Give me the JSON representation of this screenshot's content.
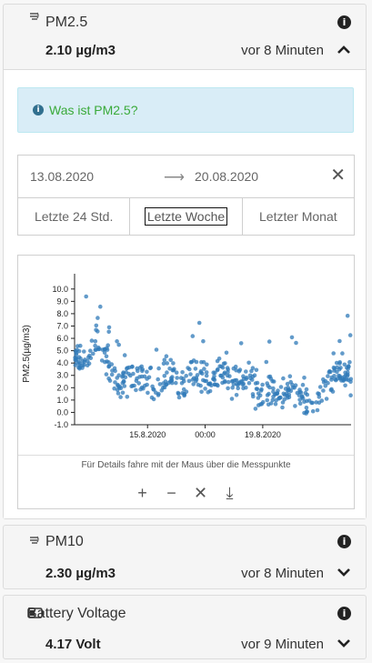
{
  "cards": [
    {
      "title": "PM2.5",
      "value": "2.10 µg/m3",
      "time": "vor 8 Minuten",
      "expanded": true,
      "info_text": "Was ist PM2.5?",
      "date_from": "13.08.2020",
      "date_to": "20.08.2020",
      "ranges": [
        "Letzte 24 Std.",
        "Letzte Woche",
        "Letzter Monat"
      ],
      "selected_range": "Letzte Woche",
      "chart_hint": "Für Details fahre mit der Maus über die Messpunkte"
    },
    {
      "title": "PM10",
      "value": "2.30 µg/m3",
      "time": "vor 8 Minuten",
      "expanded": false
    },
    {
      "title": "Battery Voltage",
      "value": "4.17 Volt",
      "time": "vor 9 Minuten",
      "expanded": false
    }
  ],
  "chart_data": {
    "type": "scatter",
    "ylabel": "PM2.5(µg/m3)",
    "ylim": [
      -1,
      10.5
    ],
    "yticks": [
      "10.0",
      "9.0",
      "8.0",
      "7.0",
      "6.0",
      "5.0",
      "4.0",
      "3.0",
      "2.0",
      "1.0",
      "0.0",
      "-1.0"
    ],
    "xticks": [
      "15.8.2020",
      "00:00",
      "19.8.2020"
    ],
    "color": "#2f7ab8",
    "x_days": [
      0.0,
      0.3,
      0.6,
      0.9,
      1.2,
      1.5,
      1.8,
      2.1,
      2.4,
      2.7,
      3.0,
      3.3,
      3.6,
      3.9,
      4.2,
      4.5,
      4.8,
      5.1,
      5.4,
      5.7,
      6.0,
      6.3,
      6.6,
      6.9,
      7.2
    ],
    "levels": [
      4.5,
      4.2,
      6.0,
      3.8,
      2.5,
      2.9,
      3.1,
      1.6,
      3.3,
      2.2,
      2.8,
      3.0,
      2.4,
      3.5,
      2.1,
      3.8,
      1.4,
      1.9,
      1.6,
      2.2,
      0.8,
      1.3,
      2.3,
      3.4,
      3.1
    ]
  },
  "icons": {
    "sensor": "sensor-icon",
    "info": "info-icon",
    "battery": "battery-icon"
  }
}
